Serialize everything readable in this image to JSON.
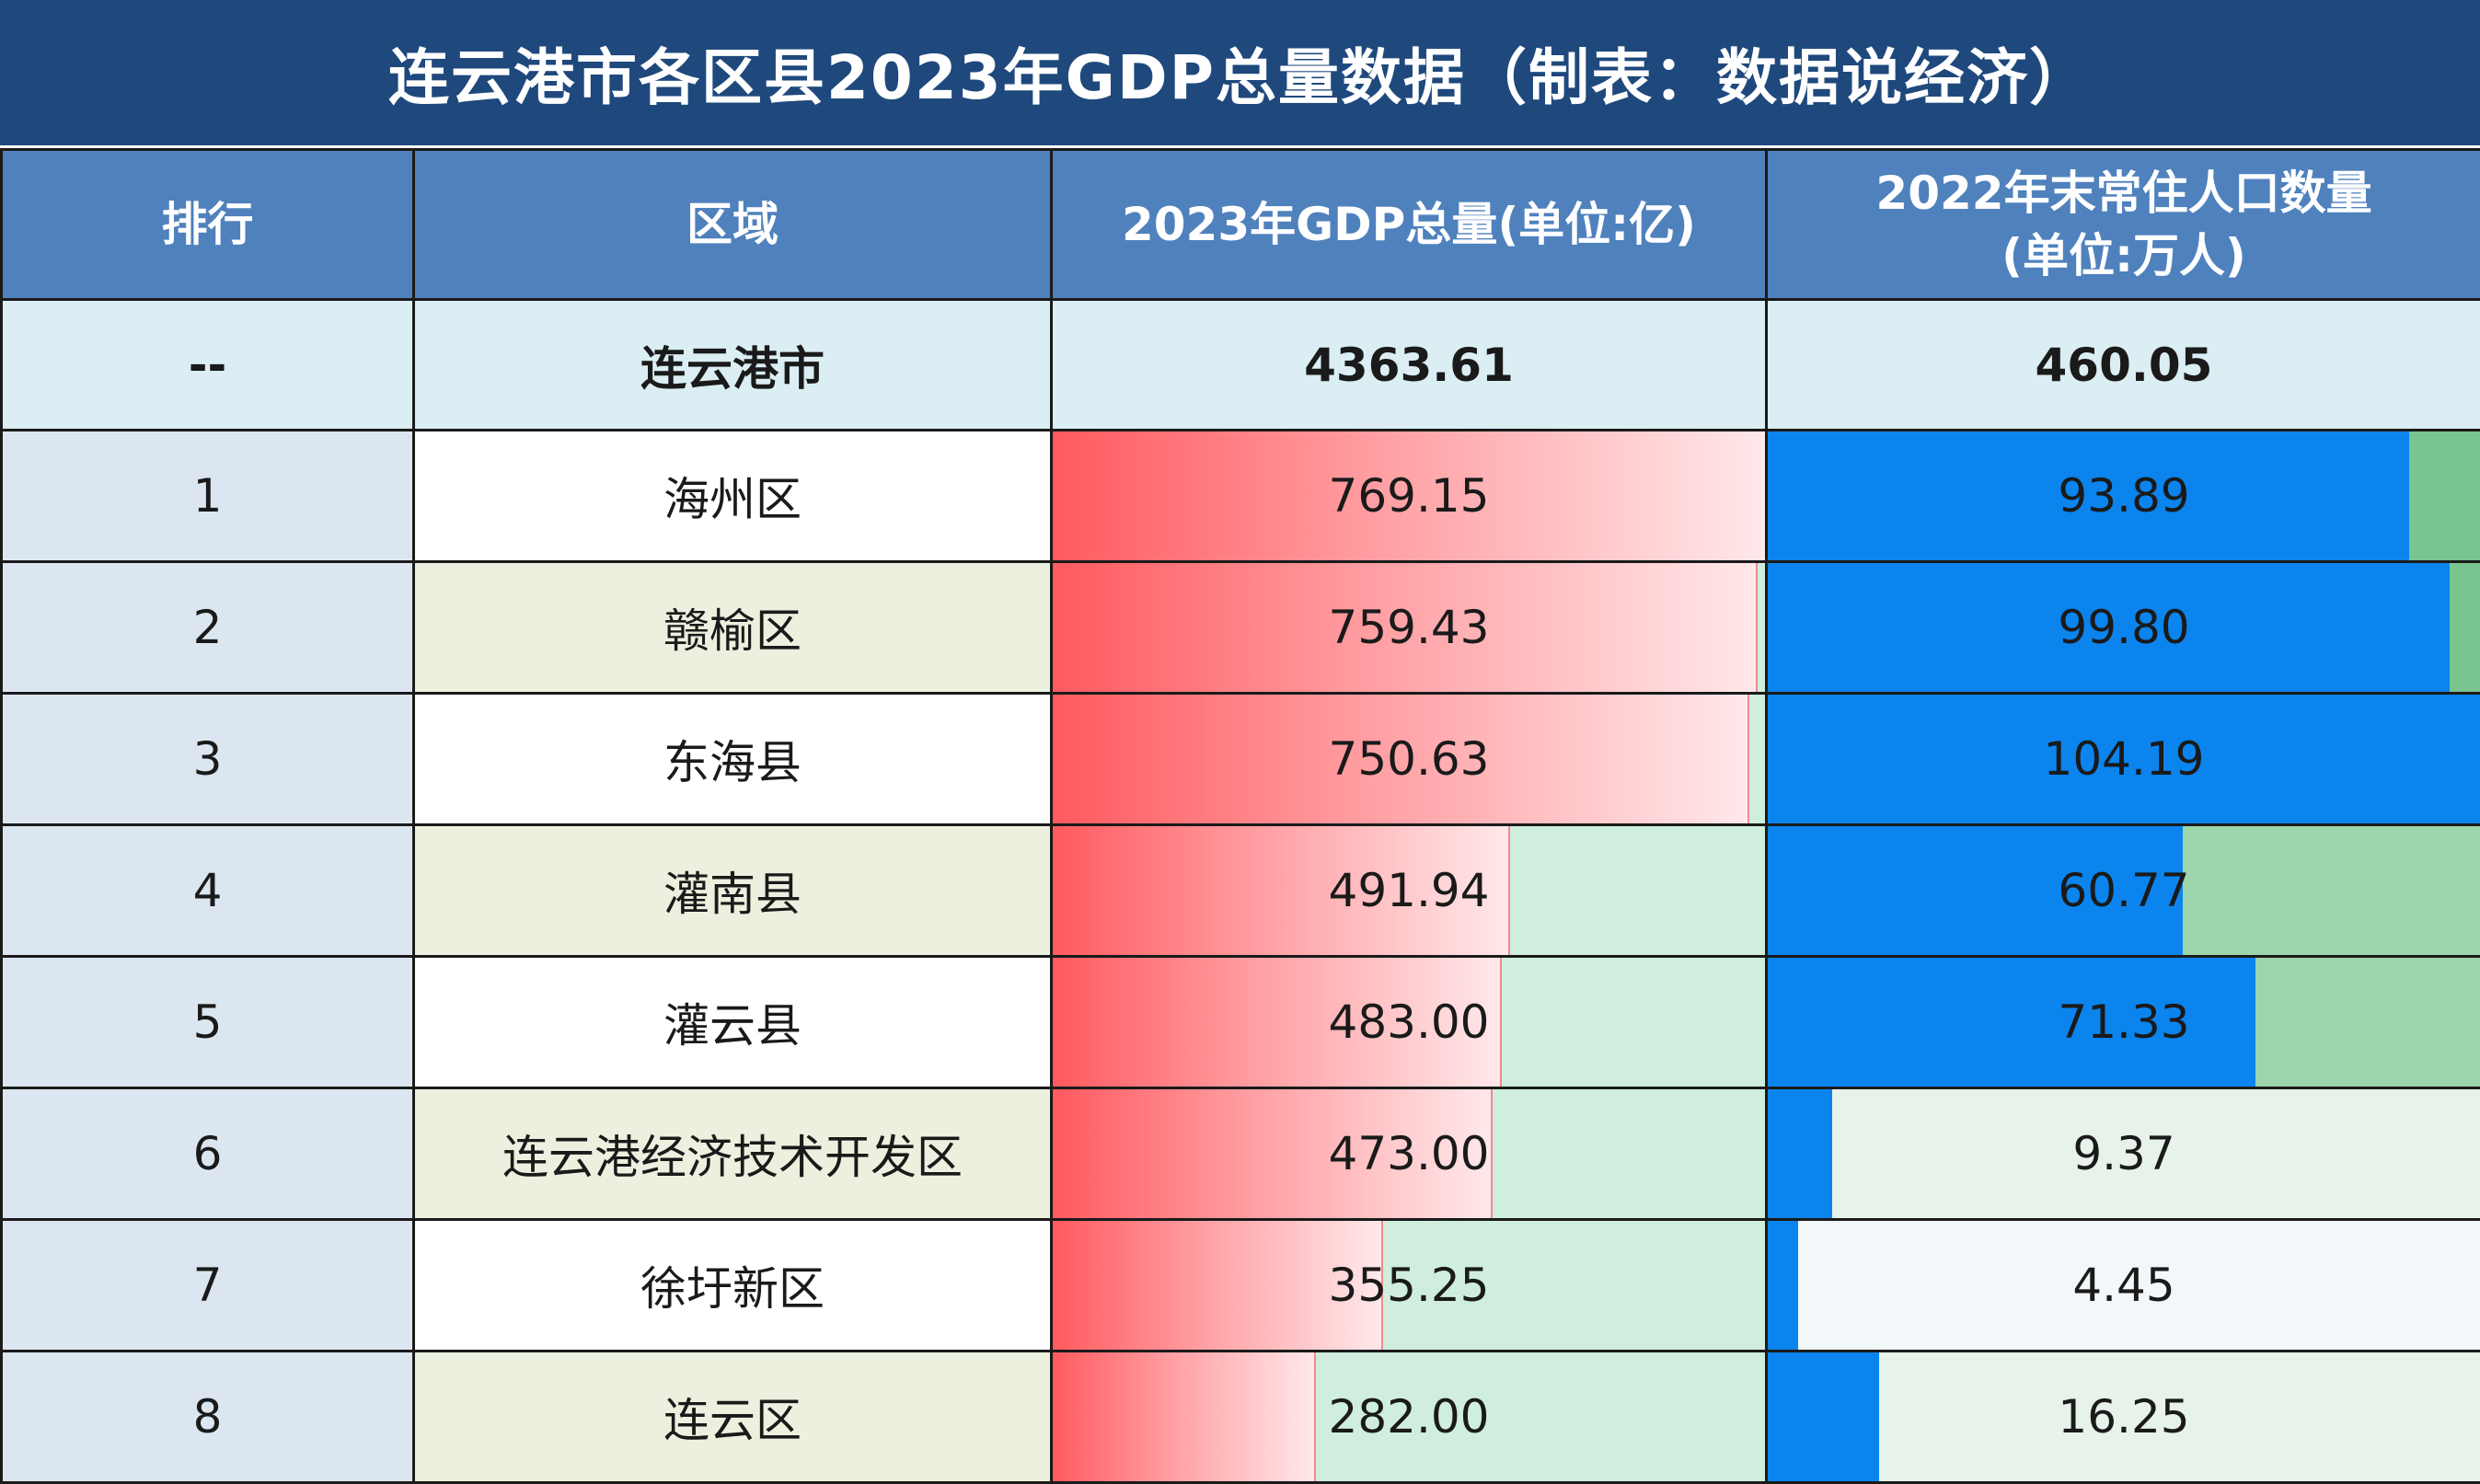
{
  "title": "连云港市各区县2023年GDP总量数据（制表：数据说经济）",
  "headers": {
    "rank": "排行",
    "area": "区域",
    "gdp": "2023年GDP总量(单位:亿)",
    "pop_line1": "2022年末常住人口数量",
    "pop_line2": "(单位:万人)"
  },
  "total": {
    "rank": "--",
    "area": "连云港市",
    "gdp": "4363.61",
    "pop": "460.05"
  },
  "rows": [
    {
      "rank": "1",
      "area": "海州区",
      "gdp": "769.15",
      "pop": "93.89"
    },
    {
      "rank": "2",
      "area": "赣榆区",
      "gdp": "759.43",
      "pop": "99.80"
    },
    {
      "rank": "3",
      "area": "东海县",
      "gdp": "750.63",
      "pop": "104.19"
    },
    {
      "rank": "4",
      "area": "灌南县",
      "gdp": "491.94",
      "pop": "60.77"
    },
    {
      "rank": "5",
      "area": "灌云县",
      "gdp": "483.00",
      "pop": "71.33"
    },
    {
      "rank": "6",
      "area": "连云港经济技术开发区",
      "gdp": "473.00",
      "pop": "9.37"
    },
    {
      "rank": "7",
      "area": "徐圩新区",
      "gdp": "355.25",
      "pop": "4.45"
    },
    {
      "rank": "8",
      "area": "连云区",
      "gdp": "282.00",
      "pop": "16.25"
    }
  ],
  "chart_data": {
    "type": "table",
    "title": "连云港市各区县2023年GDP总量数据（制表：数据说经济）",
    "columns": [
      "排行",
      "区域",
      "2023年GDP总量(单位:亿)",
      "2022年末常住人口数量(单位:万人)"
    ],
    "categories": [
      "海州区",
      "赣榆区",
      "东海县",
      "灌南县",
      "灌云县",
      "连云港经济技术开发区",
      "徐圩新区",
      "连云区"
    ],
    "series": [
      {
        "name": "2023年GDP总量(单位:亿)",
        "values": [
          769.15,
          759.43,
          750.63,
          491.94,
          483.0,
          473.0,
          355.25,
          282.0
        ]
      },
      {
        "name": "2022年末常住人口数量(单位:万人)",
        "values": [
          93.89,
          99.8,
          104.19,
          60.77,
          71.33,
          9.37,
          4.45,
          16.25
        ]
      }
    ],
    "total": {
      "area": "连云港市",
      "gdp": 4363.61,
      "pop": 460.05
    }
  },
  "colors": {
    "title_bg": "#1f497d",
    "header_bg": "#4f81bd",
    "gdp_bar": "#ff5a5f",
    "pop_bar": "#0b84ee"
  }
}
